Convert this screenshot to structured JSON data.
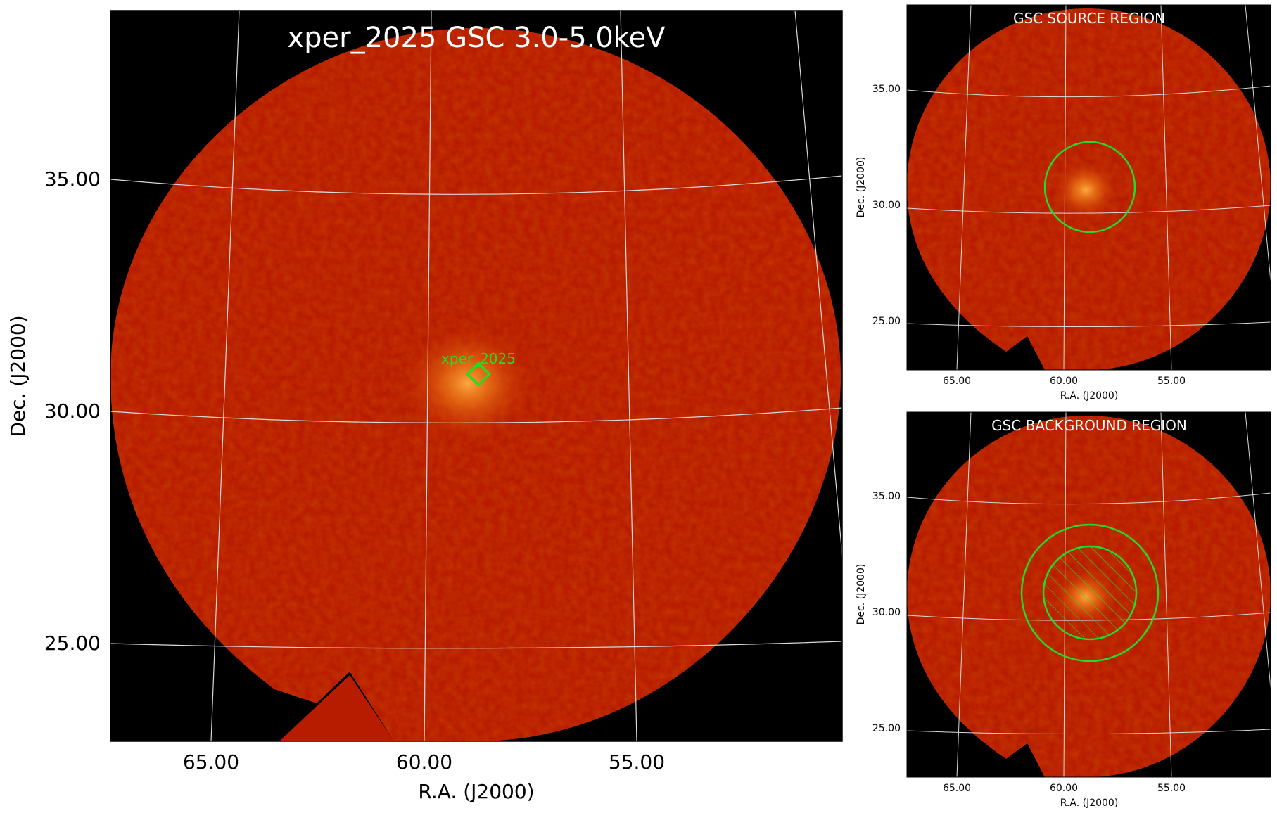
{
  "main": {
    "title": "xper_2025 GSC 3.0-5.0keV",
    "source_label": "xper_2025",
    "xlabel": "R.A. (J2000)",
    "ylabel": "Dec. (J2000)",
    "ra_ticks": [
      "65.00",
      "60.00",
      "55.00"
    ],
    "dec_ticks": [
      "35.00",
      "30.00",
      "25.00"
    ]
  },
  "source_panel": {
    "title": "GSC SOURCE REGION",
    "xlabel": "R.A. (J2000)",
    "ylabel": "Dec. (J2000)",
    "ra_ticks": [
      "65.00",
      "60.00",
      "55.00"
    ],
    "dec_ticks": [
      "35.00",
      "30.00",
      "25.00"
    ]
  },
  "background_panel": {
    "title": "GSC BACKGROUND REGION",
    "xlabel": "R.A. (J2000)",
    "ylabel": "Dec. (J2000)",
    "ra_ticks": [
      "65.00",
      "60.00",
      "55.00"
    ],
    "dec_ticks": [
      "35.00",
      "30.00",
      "25.00"
    ]
  },
  "colors": {
    "background": "#000000",
    "image_red": "#b31a00",
    "source_glow": "#ff9a2a",
    "region_green": "#22dd22",
    "grid": "#d8d8d8",
    "title_text": "#ffffff"
  }
}
